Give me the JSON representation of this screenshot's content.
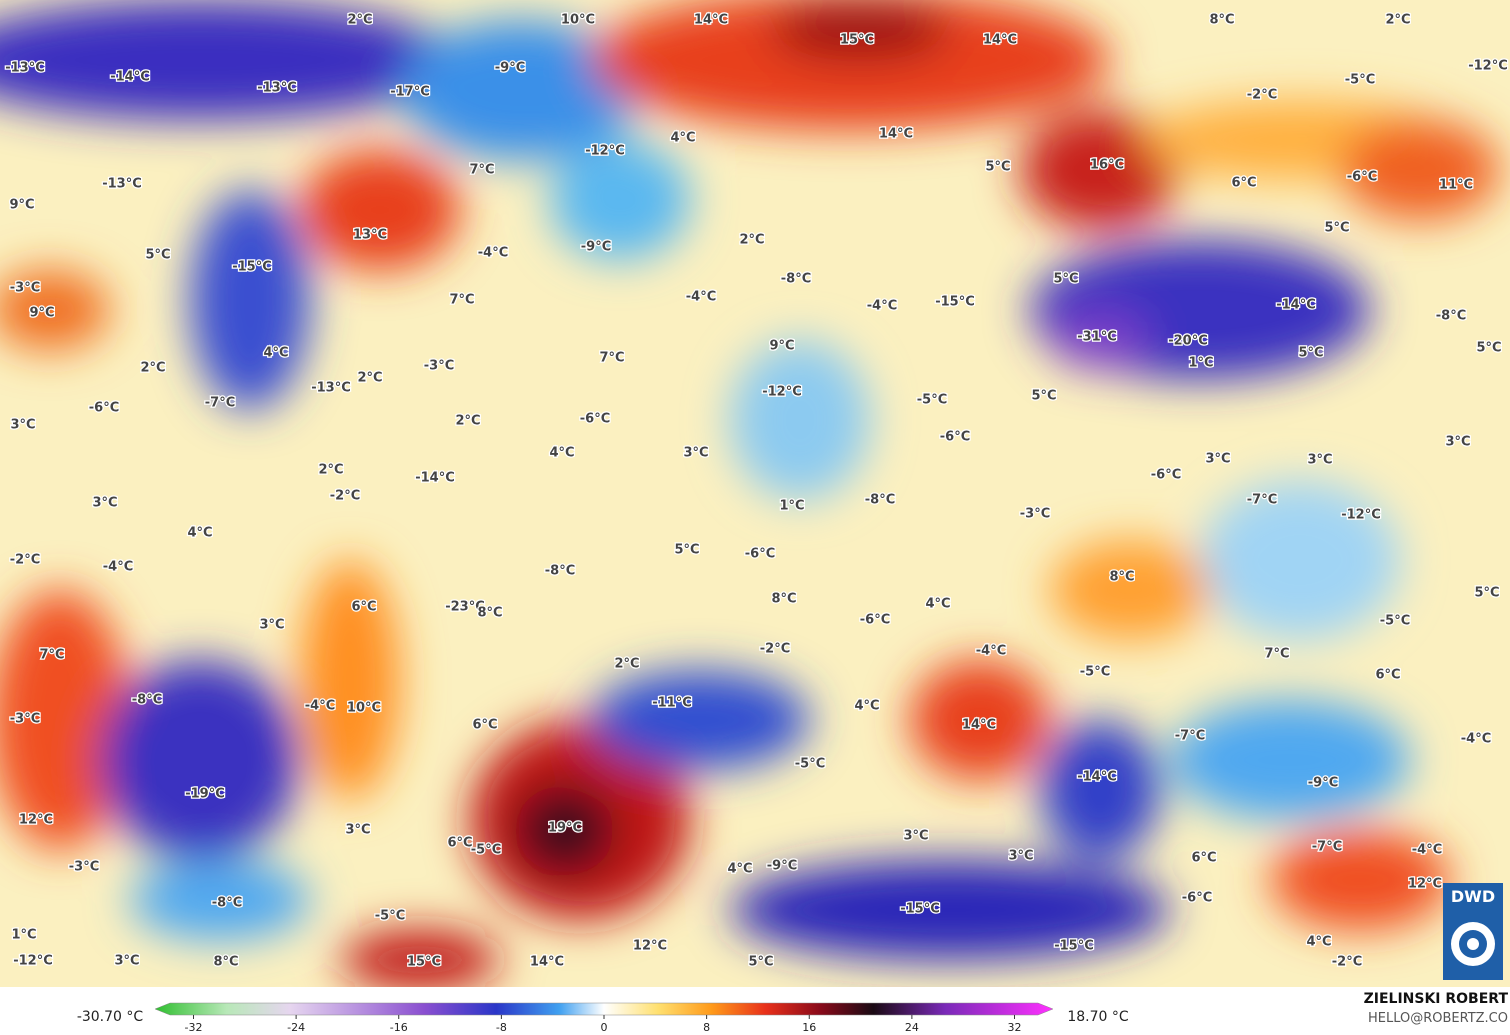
{
  "map": {
    "labels": [
      "2°C",
      "10°C",
      "14°C",
      "8°C",
      "2°C",
      "15°C",
      "14°C",
      "-13°C",
      "-14°C",
      "-9°C",
      "-12°C",
      "-5°C",
      "-13°C",
      "-17°C",
      "-2°C",
      "4°C",
      "14°C",
      "-12°C",
      "16°C",
      "5°C",
      "7°C",
      "-6°C",
      "6°C",
      "11°C",
      "-13°C",
      "9°C",
      "13°C",
      "-9°C",
      "-4°C",
      "2°C",
      "5°C",
      "5°C",
      "-15°C",
      "-8°C",
      "5°C",
      "-3°C",
      "-4°C",
      "7°C",
      "-15°C",
      "-14°C",
      "-4°C",
      "9°C",
      "-8°C",
      "-31°C",
      "-20°C",
      "9°C",
      "4°C",
      "5°C",
      "5°C",
      "7°C",
      "1°C",
      "2°C",
      "-3°C",
      "2°C",
      "-13°C",
      "-12°C",
      "-7°C",
      "-5°C",
      "5°C",
      "-6°C",
      "-6°C",
      "2°C",
      "3°C",
      "-6°C",
      "3°C",
      "4°C",
      "3°C",
      "3°C",
      "3°C",
      "2°C",
      "-6°C",
      "-14°C",
      "-2°C",
      "-7°C",
      "3°C",
      "-8°C",
      "1°C",
      "-3°C",
      "-12°C",
      "4°C",
      "5°C",
      "-6°C",
      "-2°C",
      "-4°C",
      "-8°C",
      "8°C",
      "5°C",
      "6°C",
      "-23°C",
      "8°C",
      "8°C",
      "4°C",
      "-6°C",
      "-5°C",
      "3°C",
      "-2°C",
      "-4°C",
      "7°C",
      "7°C",
      "2°C",
      "-5°C",
      "6°C",
      "-8°C",
      "-11°C",
      "-4°C",
      "10°C",
      "4°C",
      "-3°C",
      "6°C",
      "14°C",
      "-7°C",
      "-4°C",
      "-5°C",
      "-14°C",
      "-9°C",
      "-19°C",
      "12°C",
      "19°C",
      "3°C",
      "3°C",
      "6°C",
      "-5°C",
      "-7°C",
      "-4°C",
      "3°C",
      "6°C",
      "-3°C",
      "4°C",
      "-9°C",
      "12°C",
      "-6°C",
      "-8°C",
      "-15°C",
      "-5°C",
      "1°C",
      "12°C",
      "-15°C",
      "4°C",
      "-12°C",
      "3°C",
      "8°C",
      "15°C",
      "14°C",
      "5°C",
      "-2°C"
    ]
  },
  "colorbar": {
    "min_label": "-30.70 °C",
    "max_label": "18.70 °C",
    "lim": [
      -35,
      35
    ],
    "ticks": [
      -32,
      -24,
      -16,
      -8,
      0,
      8,
      16,
      24,
      32
    ]
  },
  "credits": {
    "author": "ZIELINSKI ROBERT",
    "email": "HELLO@ROBERTZ.CO",
    "logo": "DWD"
  }
}
